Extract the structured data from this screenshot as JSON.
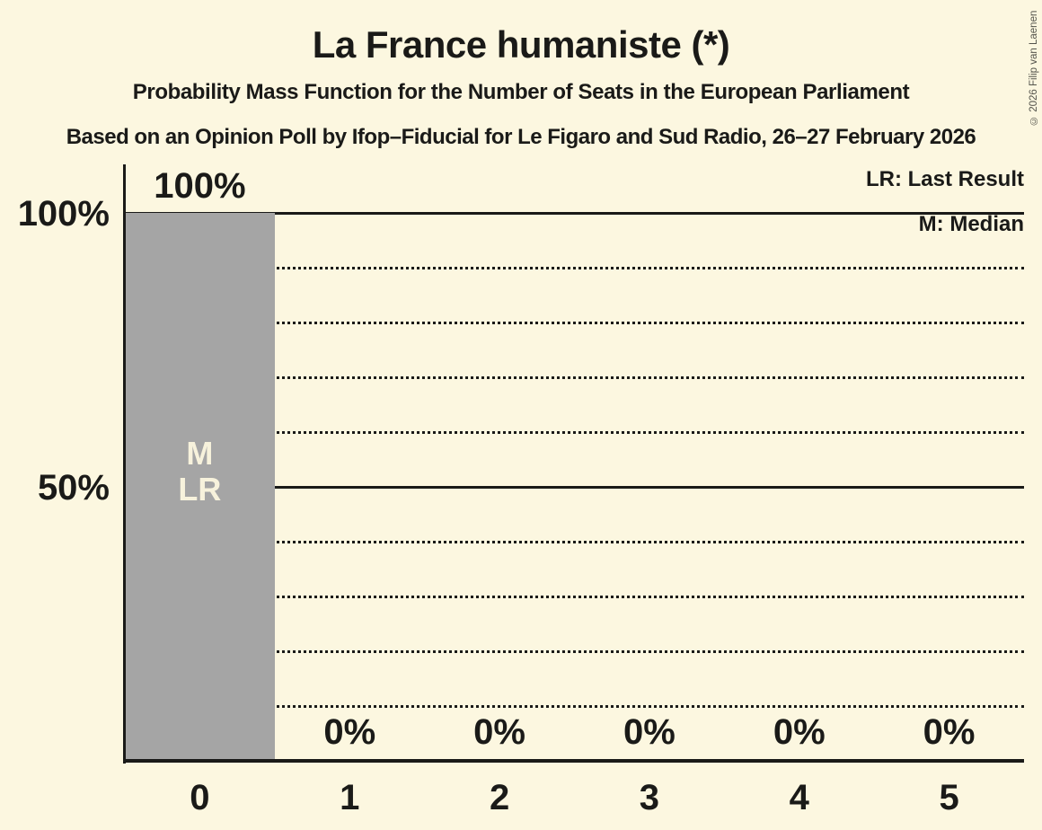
{
  "title": "La France humaniste (*)",
  "subtitle": "Probability Mass Function for the Number of Seats in the European Parliament",
  "source": "Based on an Opinion Poll by Ifop–Fiducial for Le Figaro and Sud Radio, 26–27 February 2026",
  "copyright": "© 2026 Filip van Laenen",
  "legend": [
    {
      "abbr": "LR",
      "label": "LR: Last Result"
    },
    {
      "abbr": "M",
      "label": "M: Median"
    }
  ],
  "chart_data": {
    "type": "bar",
    "title": "La France humaniste (*)",
    "xlabel": "Number of Seats in the European Parliament",
    "ylabel": "Probability",
    "categories": [
      "0",
      "1",
      "2",
      "3",
      "4",
      "5"
    ],
    "values": [
      100,
      0,
      0,
      0,
      0,
      0
    ],
    "value_labels": [
      "100%",
      "0%",
      "0%",
      "0%",
      "0%",
      "0%"
    ],
    "bar_annotations": [
      {
        "category_index": 0,
        "lines": [
          "M",
          "LR"
        ]
      }
    ],
    "ylim": [
      0,
      100
    ],
    "yticks": [
      {
        "pct": 100,
        "label": "100%"
      },
      {
        "pct": 50,
        "label": "50%"
      }
    ],
    "gridlines": {
      "solid_pct": [
        100,
        50
      ],
      "dotted_pct": [
        90,
        80,
        70,
        60,
        40,
        30,
        20,
        10
      ]
    },
    "legend_position": "top-right",
    "colors": {
      "background": "#FCF7E0",
      "bar": "#A5A5A5",
      "text": "#1A1A18",
      "bar_label": "#F7F2DC"
    }
  }
}
